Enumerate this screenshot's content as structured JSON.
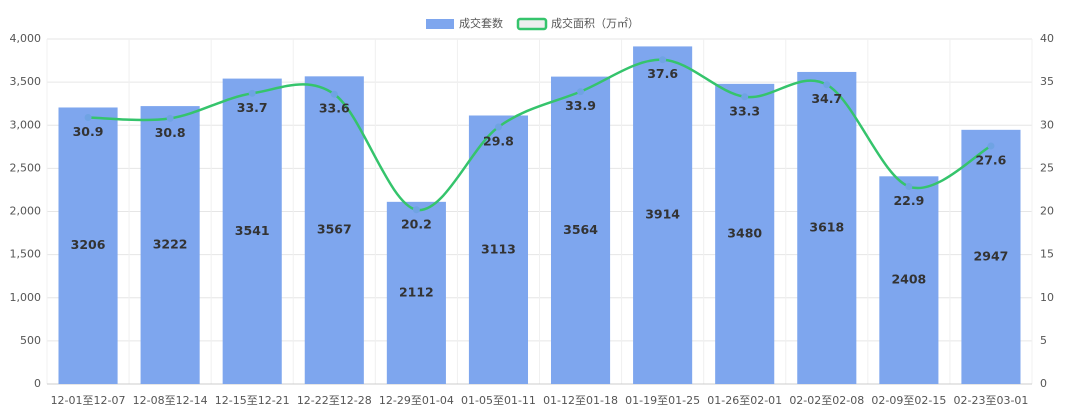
{
  "chart_data": {
    "type": "bar",
    "categories": [
      "12-01至12-07",
      "12-08至12-14",
      "12-15至12-21",
      "12-22至12-28",
      "12-29至01-04",
      "01-05至01-11",
      "01-12至01-18",
      "01-19至01-25",
      "01-26至02-01",
      "02-02至02-08",
      "02-09至02-15",
      "02-23至03-01"
    ],
    "series": [
      {
        "name": "成交套数",
        "type": "bar",
        "color": "#7ea6ee",
        "values": [
          3206,
          3222,
          3541,
          3567,
          2112,
          3113,
          3564,
          3914,
          3480,
          3618,
          2408,
          2947
        ]
      },
      {
        "name": "成交面积（万㎡）",
        "type": "line",
        "axis": "y2",
        "color": "#35c46c",
        "marker_color": "#6fa3e3",
        "smooth": true,
        "values": [
          30.9,
          30.8,
          33.7,
          33.6,
          20.2,
          29.8,
          33.9,
          37.6,
          33.3,
          34.7,
          22.9,
          27.6
        ]
      }
    ],
    "ylim": [
      0,
      4000
    ],
    "yticks": [
      0,
      500,
      {
        "value": 1000,
        "label": "1,000"
      },
      {
        "value": 1500,
        "label": "1,500"
      },
      {
        "value": 2000,
        "label": "2,000"
      },
      {
        "value": 2500,
        "label": "2,500"
      },
      {
        "value": 3000,
        "label": "3,000"
      },
      {
        "value": 3500,
        "label": "3,500"
      },
      {
        "value": 4000,
        "label": "4,000"
      }
    ],
    "y2lim": [
      0,
      40
    ],
    "y2ticks": [
      0,
      5,
      10,
      15,
      20,
      25,
      30,
      35,
      40
    ],
    "grid": true,
    "legend": "top"
  }
}
